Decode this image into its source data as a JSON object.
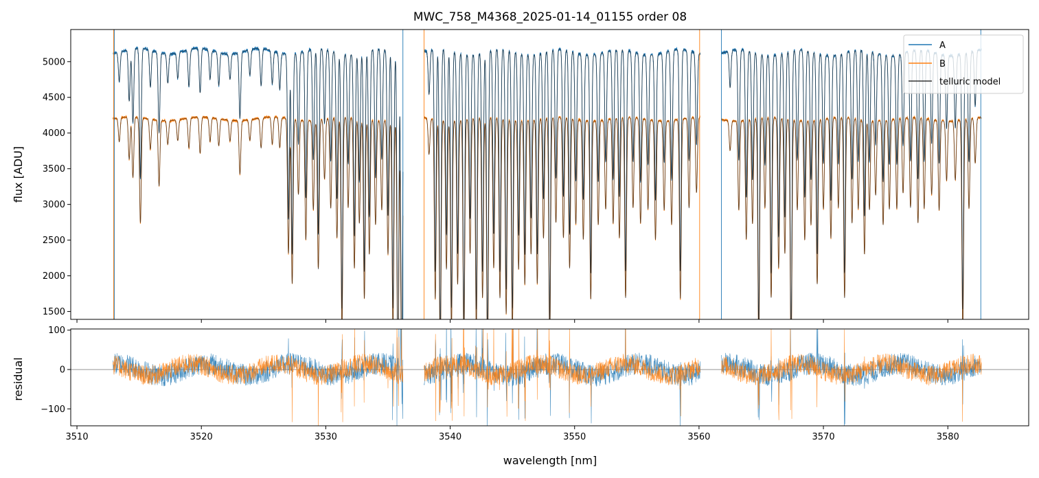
{
  "chart_data": [
    {
      "type": "line",
      "title": "MWC_758_M4368_2025-01-14_01155  order 08",
      "xlabel": "",
      "ylabel": "flux [ADU]",
      "xlim": [
        3509.5,
        3586.5
      ],
      "ylim": [
        1390,
        5450
      ],
      "yticks": [
        1500,
        2000,
        2500,
        3000,
        3500,
        4000,
        4500,
        5000
      ],
      "xticks": [
        3510,
        3520,
        3530,
        3540,
        3550,
        3560,
        3570,
        3580
      ],
      "show_xtick_labels": false,
      "legend": {
        "position": "top-right",
        "entries": [
          "A",
          "B",
          "telluric model"
        ]
      },
      "series": [
        {
          "name": "A",
          "color": "#1f77b4",
          "continuum": 5150,
          "continuum_slope": -0.4
        },
        {
          "name": "B",
          "color": "#ff7f0e",
          "continuum": 4200,
          "continuum_slope": -0.1
        },
        {
          "name": "telluric model",
          "color": "#222222"
        }
      ],
      "segments": [
        [
          3512.9,
          3536.2
        ],
        [
          3537.9,
          3560.1
        ],
        [
          3561.8,
          3582.7
        ]
      ],
      "absorption_lines": [
        [
          3513.4,
          0.08
        ],
        [
          3514.2,
          0.14
        ],
        [
          3514.5,
          0.2
        ],
        [
          3515.1,
          0.35
        ],
        [
          3515.9,
          0.1
        ],
        [
          3516.6,
          0.22
        ],
        [
          3517.3,
          0.08
        ],
        [
          3518.1,
          0.07
        ],
        [
          3519.0,
          0.1
        ],
        [
          3519.9,
          0.12
        ],
        [
          3520.7,
          0.08
        ],
        [
          3521.4,
          0.09
        ],
        [
          3522.3,
          0.07
        ],
        [
          3523.1,
          0.18
        ],
        [
          3523.9,
          0.07
        ],
        [
          3524.8,
          0.1
        ],
        [
          3525.7,
          0.09
        ],
        [
          3526.3,
          0.1
        ],
        [
          3527.0,
          0.45
        ],
        [
          3527.3,
          0.55
        ],
        [
          3527.8,
          0.25
        ],
        [
          3528.4,
          0.4
        ],
        [
          3529.0,
          0.3
        ],
        [
          3529.4,
          0.5
        ],
        [
          3529.9,
          0.2
        ],
        [
          3530.4,
          0.3
        ],
        [
          3530.9,
          0.4
        ],
        [
          3531.3,
          0.7
        ],
        [
          3531.8,
          0.3
        ],
        [
          3532.3,
          0.5
        ],
        [
          3532.7,
          0.35
        ],
        [
          3533.1,
          0.6
        ],
        [
          3533.5,
          0.45
        ],
        [
          3534.0,
          0.35
        ],
        [
          3534.5,
          0.3
        ],
        [
          3535.0,
          0.45
        ],
        [
          3535.4,
          0.7
        ],
        [
          3535.8,
          0.9
        ],
        [
          3536.1,
          0.9
        ],
        [
          3538.3,
          0.12
        ],
        [
          3538.8,
          0.6
        ],
        [
          3539.2,
          0.8
        ],
        [
          3539.7,
          0.5
        ],
        [
          3540.1,
          0.7
        ],
        [
          3540.6,
          0.55
        ],
        [
          3541.1,
          0.75
        ],
        [
          3541.6,
          0.45
        ],
        [
          3542.1,
          0.7
        ],
        [
          3542.6,
          0.6
        ],
        [
          3543.0,
          0.8
        ],
        [
          3543.5,
          0.5
        ],
        [
          3544.0,
          0.6
        ],
        [
          3544.5,
          0.65
        ],
        [
          3545.0,
          0.7
        ],
        [
          3545.5,
          0.5
        ],
        [
          3546.0,
          0.55
        ],
        [
          3546.5,
          0.45
        ],
        [
          3547.0,
          0.55
        ],
        [
          3547.5,
          0.4
        ],
        [
          3548.0,
          0.75
        ],
        [
          3548.5,
          0.35
        ],
        [
          3549.1,
          0.4
        ],
        [
          3549.6,
          0.5
        ],
        [
          3550.1,
          0.35
        ],
        [
          3550.7,
          0.4
        ],
        [
          3551.3,
          0.6
        ],
        [
          3551.9,
          0.35
        ],
        [
          3552.5,
          0.3
        ],
        [
          3553.1,
          0.35
        ],
        [
          3553.6,
          0.4
        ],
        [
          3554.1,
          0.6
        ],
        [
          3554.7,
          0.3
        ],
        [
          3555.3,
          0.35
        ],
        [
          3555.9,
          0.3
        ],
        [
          3556.5,
          0.4
        ],
        [
          3557.2,
          0.3
        ],
        [
          3557.8,
          0.35
        ],
        [
          3558.5,
          0.6
        ],
        [
          3559.2,
          0.3
        ],
        [
          3559.8,
          0.25
        ],
        [
          3562.5,
          0.1
        ],
        [
          3563.2,
          0.3
        ],
        [
          3563.8,
          0.4
        ],
        [
          3564.3,
          0.35
        ],
        [
          3564.8,
          0.75
        ],
        [
          3565.3,
          0.3
        ],
        [
          3565.8,
          0.6
        ],
        [
          3566.4,
          0.5
        ],
        [
          3566.9,
          0.45
        ],
        [
          3567.4,
          0.8
        ],
        [
          3567.9,
          0.3
        ],
        [
          3568.5,
          0.4
        ],
        [
          3569.0,
          0.35
        ],
        [
          3569.5,
          0.55
        ],
        [
          3570.0,
          0.3
        ],
        [
          3570.6,
          0.4
        ],
        [
          3571.2,
          0.3
        ],
        [
          3571.7,
          0.6
        ],
        [
          3572.3,
          0.35
        ],
        [
          3572.8,
          0.3
        ],
        [
          3573.3,
          0.45
        ],
        [
          3573.7,
          0.3
        ],
        [
          3574.2,
          0.25
        ],
        [
          3574.8,
          0.35
        ],
        [
          3575.3,
          0.3
        ],
        [
          3575.9,
          0.3
        ],
        [
          3576.4,
          0.25
        ],
        [
          3577.0,
          0.3
        ],
        [
          3577.6,
          0.35
        ],
        [
          3578.1,
          0.3
        ],
        [
          3578.7,
          0.25
        ],
        [
          3579.3,
          0.3
        ],
        [
          3579.9,
          0.2
        ],
        [
          3580.6,
          0.2
        ],
        [
          3581.2,
          0.7
        ],
        [
          3581.7,
          0.3
        ],
        [
          3582.2,
          0.15
        ]
      ]
    },
    {
      "type": "line",
      "title": "",
      "xlabel": "wavelength [nm]",
      "ylabel": "residual",
      "xlim": [
        3509.5,
        3586.5
      ],
      "ylim": [
        -143,
        103
      ],
      "yticks": [
        -100,
        0,
        100
      ],
      "xticks": [
        3510,
        3520,
        3530,
        3540,
        3550,
        3560,
        3570,
        3580
      ],
      "zero_line": true,
      "series": [
        {
          "name": "A",
          "color": "#1f77b4",
          "noise_amplitude": 35
        },
        {
          "name": "B",
          "color": "#ff7f0e",
          "noise_amplitude": 32
        }
      ]
    }
  ]
}
